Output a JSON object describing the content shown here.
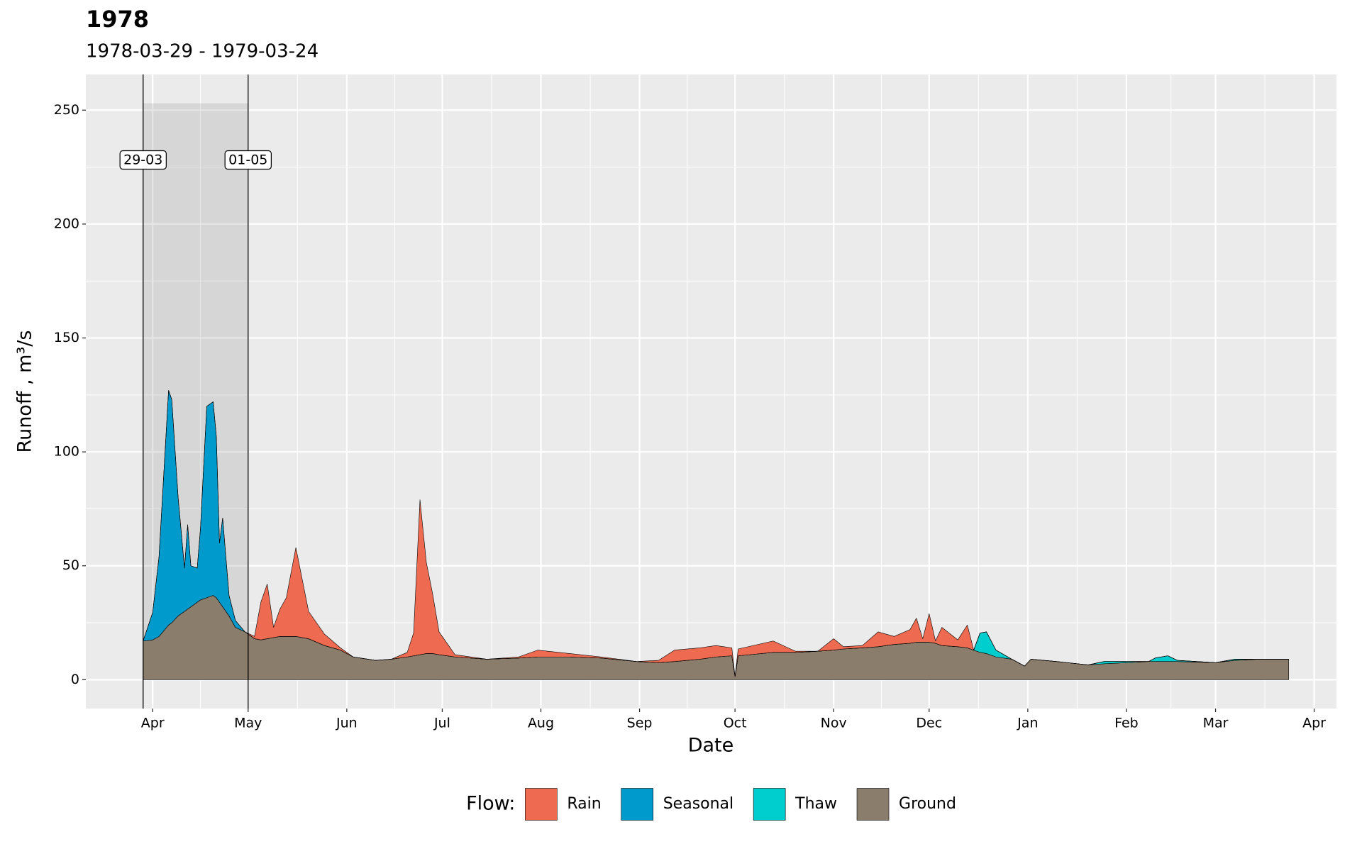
{
  "chart_data": {
    "type": "area",
    "stacked": true,
    "title": "1978",
    "subtitle": "1978-03-29 - 1979-03-24",
    "x_label": "Date",
    "y_label": "Runoff ,  m³/s",
    "legend_title": "Flow:",
    "legend_position": "bottom",
    "grid": true,
    "x": [
      "1978-03-29",
      "1978-04-01",
      "1978-04-03",
      "1978-04-06",
      "1978-04-07",
      "1978-04-09",
      "1978-04-11",
      "1978-04-12",
      "1978-04-13",
      "1978-04-15",
      "1978-04-16",
      "1978-04-18",
      "1978-04-20",
      "1978-04-21",
      "1978-04-22",
      "1978-04-23",
      "1978-04-25",
      "1978-04-27",
      "1978-04-30",
      "1978-05-03",
      "1978-05-05",
      "1978-05-07",
      "1978-05-09",
      "1978-05-11",
      "1978-05-13",
      "1978-05-16",
      "1978-05-20",
      "1978-05-25",
      "1978-05-30",
      "1978-06-03",
      "1978-06-10",
      "1978-06-15",
      "1978-06-20",
      "1978-06-22",
      "1978-06-24",
      "1978-06-26",
      "1978-06-28",
      "1978-06-30",
      "1978-07-05",
      "1978-07-15",
      "1978-07-25",
      "1978-07-31",
      "1978-08-10",
      "1978-08-20",
      "1978-08-31",
      "1978-09-07",
      "1978-09-12",
      "1978-09-20",
      "1978-09-25",
      "1978-09-30",
      "1978-10-01",
      "1978-10-02",
      "1978-10-13",
      "1978-10-20",
      "1978-10-27",
      "1978-11-01",
      "1978-11-04",
      "1978-11-10",
      "1978-11-15",
      "1978-11-20",
      "1978-11-25",
      "1978-11-27",
      "1978-11-29",
      "1978-12-01",
      "1978-12-03",
      "1978-12-05",
      "1978-12-10",
      "1978-12-13",
      "1978-12-15",
      "1978-12-17",
      "1978-12-19",
      "1978-12-22",
      "1978-12-27",
      "1978-12-31",
      "1979-01-02",
      "1979-01-10",
      "1979-01-20",
      "1979-01-25",
      "1979-02-01",
      "1979-02-08",
      "1979-02-10",
      "1979-02-14",
      "1979-02-17",
      "1979-03-01",
      "1979-03-07",
      "1979-03-15",
      "1979-03-24"
    ],
    "series": [
      {
        "name": "Rain",
        "color": "#ee6a50",
        "values": [
          0,
          0,
          0,
          0,
          0,
          0,
          0,
          0,
          0,
          0,
          0,
          0,
          0,
          0,
          0,
          0,
          0,
          0,
          0,
          1,
          16.5,
          24,
          4.5,
          12,
          17,
          39,
          12,
          5,
          1,
          0,
          0,
          0,
          2,
          10,
          68,
          40,
          26,
          10,
          1,
          0,
          0.5,
          3,
          1.5,
          0.5,
          0,
          1,
          5,
          5,
          5,
          3.5,
          0,
          3,
          5,
          0.5,
          0,
          5,
          1,
          1,
          6.5,
          3.5,
          6,
          10.5,
          1.5,
          12.5,
          1,
          8,
          3,
          10,
          0,
          0,
          0,
          0,
          0,
          0,
          0,
          0,
          0,
          0,
          0,
          0,
          0,
          0,
          0,
          0,
          0,
          0,
          0
        ]
      },
      {
        "name": "Seasonal",
        "color": "#009acd",
        "values": [
          0,
          12,
          35,
          103,
          98,
          52,
          19,
          37,
          18,
          15,
          31,
          84,
          85,
          71,
          26,
          39,
          9,
          3,
          0,
          0,
          0,
          0,
          0,
          0,
          0,
          0,
          0,
          0,
          0,
          0,
          0,
          0,
          0,
          0,
          0,
          0,
          0,
          0,
          0,
          0,
          0,
          0,
          0,
          0,
          0,
          0,
          0,
          0,
          0,
          0,
          0,
          0,
          0,
          0,
          0,
          0,
          0,
          0,
          0,
          0,
          0,
          0,
          0,
          0,
          0,
          0,
          0,
          0,
          0,
          0,
          0,
          0,
          0,
          0,
          0,
          0,
          0,
          0,
          0,
          0,
          0,
          0,
          0,
          0,
          0,
          0,
          0
        ]
      },
      {
        "name": "Thaw",
        "color": "#00cdcd",
        "values": [
          0,
          0,
          0,
          0,
          0,
          0,
          0,
          0,
          0,
          0,
          0,
          0,
          0,
          0,
          0,
          0,
          0,
          0,
          0,
          0,
          0,
          0,
          0,
          0,
          0,
          0,
          0,
          0,
          0,
          0,
          0,
          0,
          0,
          0,
          0,
          0,
          0,
          0,
          0,
          0,
          0,
          0,
          0,
          0,
          0,
          0,
          0,
          0,
          0,
          0,
          0,
          0,
          0,
          0,
          0,
          0,
          0,
          0,
          0,
          0,
          0,
          0,
          0,
          0,
          0,
          0,
          0,
          0,
          0,
          8.5,
          9.5,
          3,
          0,
          0,
          0,
          0,
          0,
          1,
          0.5,
          0,
          1.5,
          2.5,
          0.5,
          0,
          0.5,
          0,
          0
        ]
      },
      {
        "name": "Ground",
        "color": "#8b7d6b",
        "values": [
          17,
          17.5,
          19,
          24,
          25,
          28,
          30,
          31,
          32,
          34,
          35,
          36,
          37,
          36,
          34,
          32,
          28,
          23,
          21,
          18,
          17.5,
          18,
          18.5,
          19,
          19,
          19,
          18,
          15,
          13,
          10,
          8.5,
          9,
          10,
          10.5,
          11,
          11.5,
          11.5,
          11,
          10,
          9,
          9.5,
          10,
          10,
          9.5,
          8,
          7.5,
          8,
          9,
          10,
          10.5,
          1.5,
          10.5,
          12,
          12,
          12.5,
          13,
          13.5,
          14,
          14.5,
          15.5,
          16,
          16.5,
          16.5,
          16.5,
          16,
          15,
          14.5,
          14,
          13,
          12,
          11.5,
          10,
          9,
          6,
          9,
          8,
          6.5,
          7,
          7.5,
          8,
          8,
          8,
          8,
          7.5,
          8.5,
          9,
          9
        ]
      }
    ],
    "shade": {
      "x": [
        "1978-03-29",
        "1978-05-01"
      ],
      "y": 253
    },
    "annotations": [
      {
        "x": "1978-03-29",
        "label": "29-03"
      },
      {
        "x": "1978-05-01",
        "label": "01-05"
      }
    ],
    "xlim": [
      "1978-03-11",
      "1979-04-08"
    ],
    "xticks": [
      {
        "value": "1978-04-01",
        "label": "Apr"
      },
      {
        "value": "1978-05-01",
        "label": "May"
      },
      {
        "value": "1978-06-01",
        "label": "Jun"
      },
      {
        "value": "1978-07-01",
        "label": "Jul"
      },
      {
        "value": "1978-08-01",
        "label": "Aug"
      },
      {
        "value": "1978-09-01",
        "label": "Sep"
      },
      {
        "value": "1978-10-01",
        "label": "Oct"
      },
      {
        "value": "1978-11-01",
        "label": "Nov"
      },
      {
        "value": "1978-12-01",
        "label": "Dec"
      },
      {
        "value": "1979-01-01",
        "label": "Jan"
      },
      {
        "value": "1979-02-01",
        "label": "Feb"
      },
      {
        "value": "1979-03-01",
        "label": "Mar"
      },
      {
        "value": "1979-04-01",
        "label": "Apr"
      }
    ],
    "ylim": [
      -12.65,
      265.65
    ],
    "yticks": [
      0,
      50,
      100,
      150,
      200,
      250
    ]
  }
}
